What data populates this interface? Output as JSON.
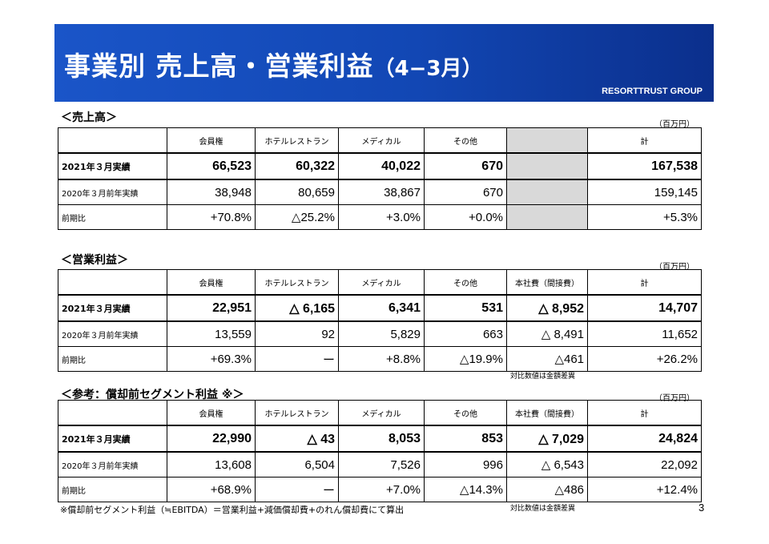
{
  "header": {
    "title_main": "事業別 売上高・営業利益",
    "title_sub": "（4−3月）",
    "org": "RESORTTRUST GROUP"
  },
  "sections": [
    {
      "title": "＜売上高＞",
      "unit": "（百万円）",
      "columns": [
        "",
        "会員権",
        "ホテルレストラン",
        "メディカル",
        "その他",
        "",
        "計"
      ],
      "rows": [
        {
          "label": "2021年３月実績",
          "values": [
            "66,523",
            "60,322",
            "40,022",
            "670",
            "",
            "167,538"
          ]
        },
        {
          "label": "2020年３月前年実績",
          "values": [
            "38,948",
            "80,659",
            "38,867",
            "670",
            "",
            "159,145"
          ]
        },
        {
          "label": "前期比",
          "values": [
            "+70.8%",
            "△25.2%",
            "+3.0%",
            "+0.0%",
            "",
            "+5.3%"
          ]
        }
      ],
      "note": ""
    },
    {
      "title": "＜営業利益＞",
      "unit": "（百万円）",
      "columns": [
        "",
        "会員権",
        "ホテルレストラン",
        "メディカル",
        "その他",
        "本社費（間接費）",
        "計"
      ],
      "rows": [
        {
          "label": "2021年３月実績",
          "values": [
            "22,951",
            "△ 6,165",
            "6,341",
            "531",
            "△ 8,952",
            "14,707"
          ]
        },
        {
          "label": "2020年３月前年実績",
          "values": [
            "13,559",
            "92",
            "5,829",
            "663",
            "△ 8,491",
            "11,652"
          ]
        },
        {
          "label": "前期比",
          "values": [
            "+69.3%",
            "ー",
            "+8.8%",
            "△19.9%",
            "△461",
            "+26.2%"
          ]
        }
      ],
      "note": "対比数値は金額差異"
    },
    {
      "title": "＜参考：償却前セグメント利益 ※＞",
      "unit": "（百万円）",
      "columns": [
        "",
        "会員権",
        "ホテルレストラン",
        "メディカル",
        "その他",
        "本社費（間接費）",
        "計"
      ],
      "rows": [
        {
          "label": "2021年３月実績",
          "values": [
            "22,990",
            "△ 43",
            "8,053",
            "853",
            "△ 7,029",
            "24,824"
          ]
        },
        {
          "label": "2020年３月前年実績",
          "values": [
            "13,608",
            "6,504",
            "7,526",
            "996",
            "△ 6,543",
            "22,092"
          ]
        },
        {
          "label": "前期比",
          "values": [
            "+68.9%",
            "ー",
            "+7.0%",
            "△14.3%",
            "△486",
            "+12.4%"
          ]
        }
      ],
      "note": "対比数値は金額差異"
    }
  ],
  "footnote": "※償却前セグメント利益（≒EBITDA）＝営業利益+減価償却費+のれん償却費にて算出",
  "page_number": "3"
}
